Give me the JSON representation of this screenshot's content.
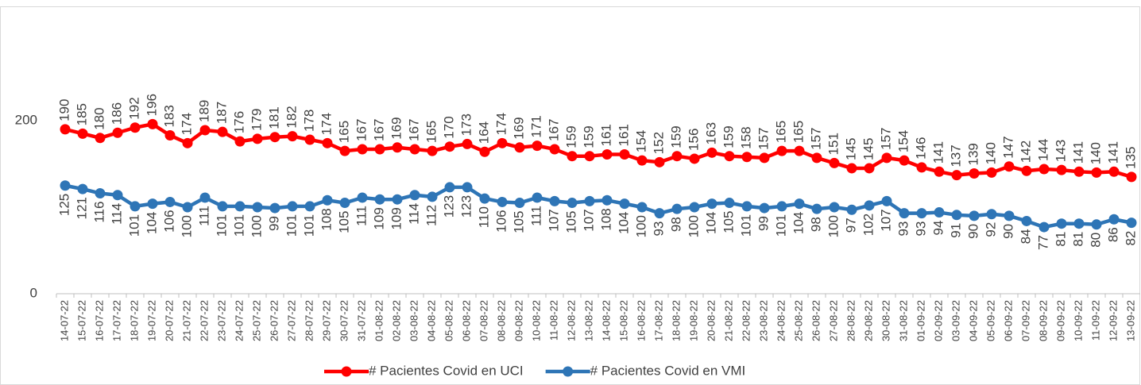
{
  "chart_data": {
    "type": "line",
    "x": [
      "14-07-22",
      "15-07-22",
      "16-07-22",
      "17-07-22",
      "18-07-22",
      "19-07-22",
      "20-07-22",
      "21-07-22",
      "22-07-22",
      "23-07-22",
      "24-07-22",
      "25-07-22",
      "26-07-22",
      "27-07-22",
      "28-07-22",
      "29-07-22",
      "30-07-22",
      "31-07-22",
      "01-08-22",
      "02-08-22",
      "03-08-22",
      "04-08-22",
      "05-08-22",
      "06-08-22",
      "07-08-22",
      "08-08-22",
      "09-08-22",
      "10-08-22",
      "11-08-22",
      "12-08-22",
      "13-08-22",
      "14-08-22",
      "15-08-22",
      "16-08-22",
      "17-08-22",
      "18-08-22",
      "19-08-22",
      "20-08-22",
      "21-08-22",
      "22-08-22",
      "23-08-22",
      "24-08-22",
      "25-08-22",
      "26-08-22",
      "27-08-22",
      "28-08-22",
      "29-08-22",
      "30-08-22",
      "31-08-22",
      "01-09-22",
      "02-09-22",
      "03-09-22",
      "04-09-22",
      "05-09-22",
      "06-09-22",
      "07-09-22",
      "08-09-22",
      "09-09-22",
      "10-09-22",
      "11-09-22",
      "12-09-22",
      "13-09-22"
    ],
    "series": [
      {
        "name": "# Pacientes Covid en UCI",
        "color": "#ff0000",
        "values": [
          190,
          185,
          180,
          186,
          192,
          196,
          183,
          174,
          189,
          187,
          176,
          179,
          181,
          182,
          178,
          174,
          165,
          167,
          167,
          169,
          167,
          165,
          170,
          173,
          164,
          174,
          169,
          171,
          167,
          159,
          159,
          161,
          161,
          154,
          152,
          159,
          156,
          163,
          159,
          158,
          157,
          165,
          165,
          157,
          151,
          145,
          145,
          157,
          154,
          146,
          141,
          137,
          139,
          140,
          147,
          142,
          144,
          143,
          141,
          140,
          141,
          135
        ]
      },
      {
        "name": "# Pacientes Covid en VMI",
        "color": "#2e75b6",
        "values": [
          125,
          121,
          116,
          114,
          101,
          104,
          106,
          100,
          111,
          101,
          101,
          100,
          99,
          101,
          101,
          108,
          105,
          111,
          109,
          109,
          114,
          112,
          123,
          123,
          110,
          106,
          105,
          111,
          107,
          105,
          107,
          108,
          104,
          100,
          93,
          98,
          100,
          104,
          105,
          101,
          99,
          101,
          104,
          98,
          100,
          97,
          102,
          107,
          93,
          93,
          94,
          91,
          90,
          92,
          90,
          84,
          77,
          81,
          81,
          80,
          86,
          82
        ]
      }
    ],
    "ylim": [
      0,
      300
    ],
    "yticks": [
      0,
      200
    ],
    "grid": false
  }
}
